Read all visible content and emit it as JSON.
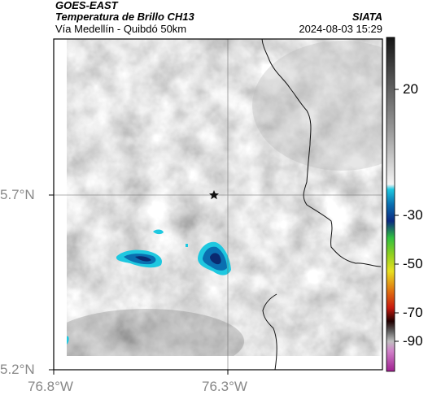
{
  "header": {
    "satellite": "GOES-EAST",
    "product": "Temperatura de Brillo CH13",
    "region": "Vía Medellín - Quibdó 50km",
    "agency": "SIATA",
    "timestamp": "2024-08-03 15:29"
  },
  "map": {
    "type": "brightness-temperature-raster",
    "x_ticks": [
      "76.8°W",
      "76.3°W"
    ],
    "y_ticks": [
      "5.7°N",
      "5.2°N"
    ],
    "marker_icon": "star-icon",
    "grid": true
  },
  "colorbar": {
    "ticks": [
      "20",
      "-30",
      "-50",
      "-70",
      "-90"
    ],
    "colors": {
      "warm": "#ffffff",
      "cold_blue": "#0a6fb0",
      "cyan": "#1ec8e0",
      "green": "#2fbf3f",
      "yellow": "#e8e020",
      "red": "#d42a1a",
      "magenta": "#c050b0"
    }
  }
}
